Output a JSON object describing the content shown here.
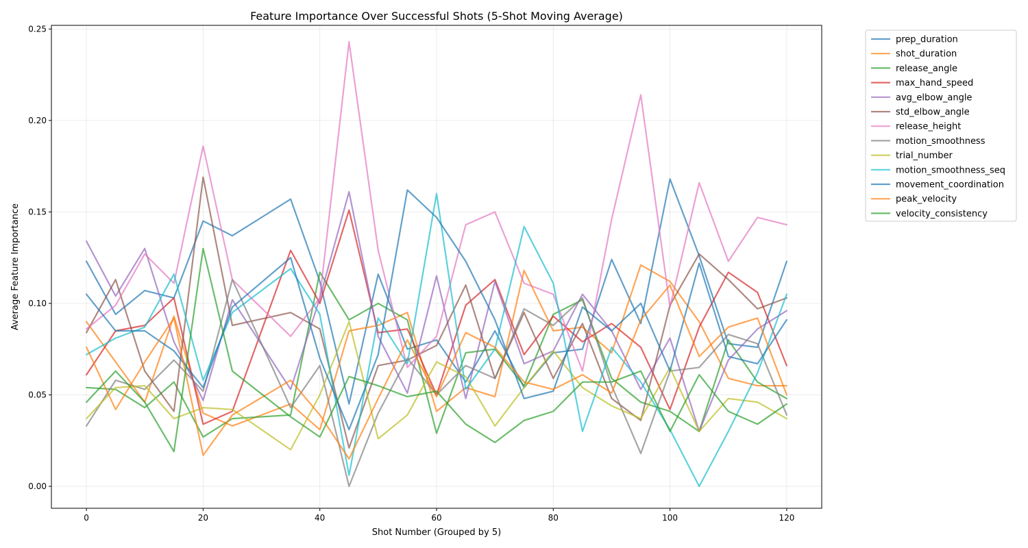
{
  "chart_data": {
    "type": "line",
    "title": "Feature Importance Over Successful Shots (5-Shot Moving Average)",
    "xlabel": "Shot Number (Grouped by 5)",
    "ylabel": "Average Feature Importance",
    "xlim": [
      -6,
      126
    ],
    "ylim": [
      -0.012,
      0.252
    ],
    "xticks": [
      0,
      20,
      40,
      60,
      80,
      100,
      120
    ],
    "xtick_labels": [
      "0",
      "20",
      "40",
      "60",
      "80",
      "100",
      "120"
    ],
    "yticks": [
      0.0,
      0.05,
      0.1,
      0.15,
      0.2,
      0.25
    ],
    "ytick_labels": [
      "0.00",
      "0.05",
      "0.10",
      "0.15",
      "0.20",
      "0.25"
    ],
    "grid": true,
    "legend_position": "outside-right-top",
    "x": [
      0,
      5,
      10,
      15,
      20,
      25,
      35,
      40,
      45,
      50,
      55,
      60,
      65,
      70,
      75,
      80,
      85,
      90,
      95,
      100,
      105,
      110,
      115,
      120
    ],
    "series": [
      {
        "name": "prep_duration",
        "color": "#1f77b4",
        "values": [
          0.123,
          0.094,
          0.107,
          0.103,
          0.145,
          0.137,
          0.157,
          0.112,
          0.045,
          0.116,
          0.075,
          0.08,
          0.057,
          0.085,
          0.054,
          0.073,
          0.075,
          0.124,
          0.089,
          0.168,
          0.126,
          0.078,
          0.076,
          0.123
        ]
      },
      {
        "name": "shot_duration",
        "color": "#ff7f0e",
        "values": [
          0.09,
          0.068,
          0.046,
          0.093,
          0.04,
          0.033,
          0.045,
          0.031,
          0.085,
          0.088,
          0.095,
          0.041,
          0.054,
          0.049,
          0.118,
          0.085,
          0.087,
          0.073,
          0.121,
          0.112,
          0.09,
          0.059,
          0.055,
          0.055
        ]
      },
      {
        "name": "release_angle",
        "color": "#2ca02c",
        "values": [
          0.054,
          0.053,
          0.043,
          0.057,
          0.027,
          0.037,
          0.039,
          0.117,
          0.091,
          0.1,
          0.091,
          0.029,
          0.073,
          0.075,
          0.055,
          0.094,
          0.102,
          0.059,
          0.046,
          0.041,
          0.03,
          0.08,
          0.057,
          0.048
        ]
      },
      {
        "name": "max_hand_speed",
        "color": "#d62728",
        "values": [
          0.061,
          0.085,
          0.088,
          0.103,
          0.034,
          0.041,
          0.129,
          0.1,
          0.151,
          0.084,
          0.086,
          0.05,
          0.099,
          0.113,
          0.072,
          0.093,
          0.079,
          0.089,
          0.076,
          0.042,
          0.087,
          0.117,
          0.106,
          0.066
        ]
      },
      {
        "name": "avg_elbow_angle",
        "color": "#9467bd",
        "values": [
          0.134,
          0.104,
          0.13,
          0.079,
          0.047,
          0.102,
          0.053,
          0.103,
          0.161,
          0.082,
          0.051,
          0.115,
          0.048,
          0.112,
          0.067,
          0.074,
          0.105,
          0.085,
          0.053,
          0.081,
          0.03,
          0.069,
          0.086,
          0.096
        ]
      },
      {
        "name": "std_elbow_angle",
        "color": "#8c564b",
        "values": [
          0.084,
          0.113,
          0.063,
          0.041,
          0.169,
          0.088,
          0.095,
          0.086,
          0.021,
          0.066,
          0.069,
          0.077,
          0.11,
          0.059,
          0.095,
          0.059,
          0.089,
          0.048,
          0.036,
          0.099,
          0.127,
          0.113,
          0.097,
          0.103
        ]
      },
      {
        "name": "release_height",
        "color": "#e377c2",
        "values": [
          0.086,
          0.099,
          0.127,
          0.111,
          0.186,
          0.113,
          0.082,
          0.103,
          0.243,
          0.129,
          0.065,
          0.082,
          0.143,
          0.15,
          0.111,
          0.105,
          0.063,
          0.146,
          0.214,
          0.098,
          0.166,
          0.123,
          0.147,
          0.143
        ]
      },
      {
        "name": "motion_smoothness",
        "color": "#7f7f7f",
        "values": [
          0.033,
          0.058,
          0.053,
          0.069,
          0.052,
          0.113,
          0.043,
          0.066,
          0.0,
          0.04,
          0.07,
          0.05,
          0.066,
          0.059,
          0.097,
          0.088,
          0.103,
          0.055,
          0.018,
          0.063,
          0.065,
          0.083,
          0.078,
          0.039
        ]
      },
      {
        "name": "trial_number",
        "color": "#bcbd22",
        "values": [
          0.037,
          0.054,
          0.055,
          0.037,
          0.043,
          0.042,
          0.02,
          0.05,
          0.09,
          0.026,
          0.039,
          0.068,
          0.06,
          0.033,
          0.054,
          0.074,
          0.054,
          0.044,
          0.037,
          0.065,
          0.03,
          0.048,
          0.046,
          0.037
        ]
      },
      {
        "name": "motion_smoothness_seq",
        "color": "#17becf",
        "values": [
          0.072,
          0.081,
          0.087,
          0.116,
          0.058,
          0.095,
          0.119,
          0.094,
          0.006,
          0.092,
          0.067,
          0.16,
          0.053,
          0.075,
          0.142,
          0.111,
          0.03,
          0.076,
          0.057,
          0.031,
          0.0,
          0.03,
          0.062,
          0.105
        ]
      },
      {
        "name": "movement_coordination",
        "color": "#1f77b4",
        "values": [
          0.105,
          0.085,
          0.085,
          0.074,
          0.054,
          0.098,
          0.125,
          0.07,
          0.031,
          0.072,
          0.162,
          0.147,
          0.123,
          0.091,
          0.048,
          0.052,
          0.098,
          0.085,
          0.1,
          0.063,
          0.122,
          0.071,
          0.067,
          0.091
        ]
      },
      {
        "name": "peak_velocity",
        "color": "#ff7f0e",
        "values": [
          0.076,
          0.042,
          0.068,
          0.092,
          0.017,
          0.039,
          0.058,
          0.039,
          0.015,
          0.048,
          0.08,
          0.049,
          0.084,
          0.076,
          0.057,
          0.053,
          0.061,
          0.051,
          0.091,
          0.11,
          0.071,
          0.087,
          0.092,
          0.05
        ]
      },
      {
        "name": "velocity_consistency",
        "color": "#2ca02c",
        "values": [
          0.046,
          0.063,
          0.046,
          0.019,
          0.13,
          0.063,
          0.038,
          0.027,
          0.06,
          0.055,
          0.049,
          0.052,
          0.034,
          0.024,
          0.036,
          0.041,
          0.057,
          0.057,
          0.063,
          0.03,
          0.061,
          0.041,
          0.034,
          0.045
        ]
      }
    ]
  }
}
